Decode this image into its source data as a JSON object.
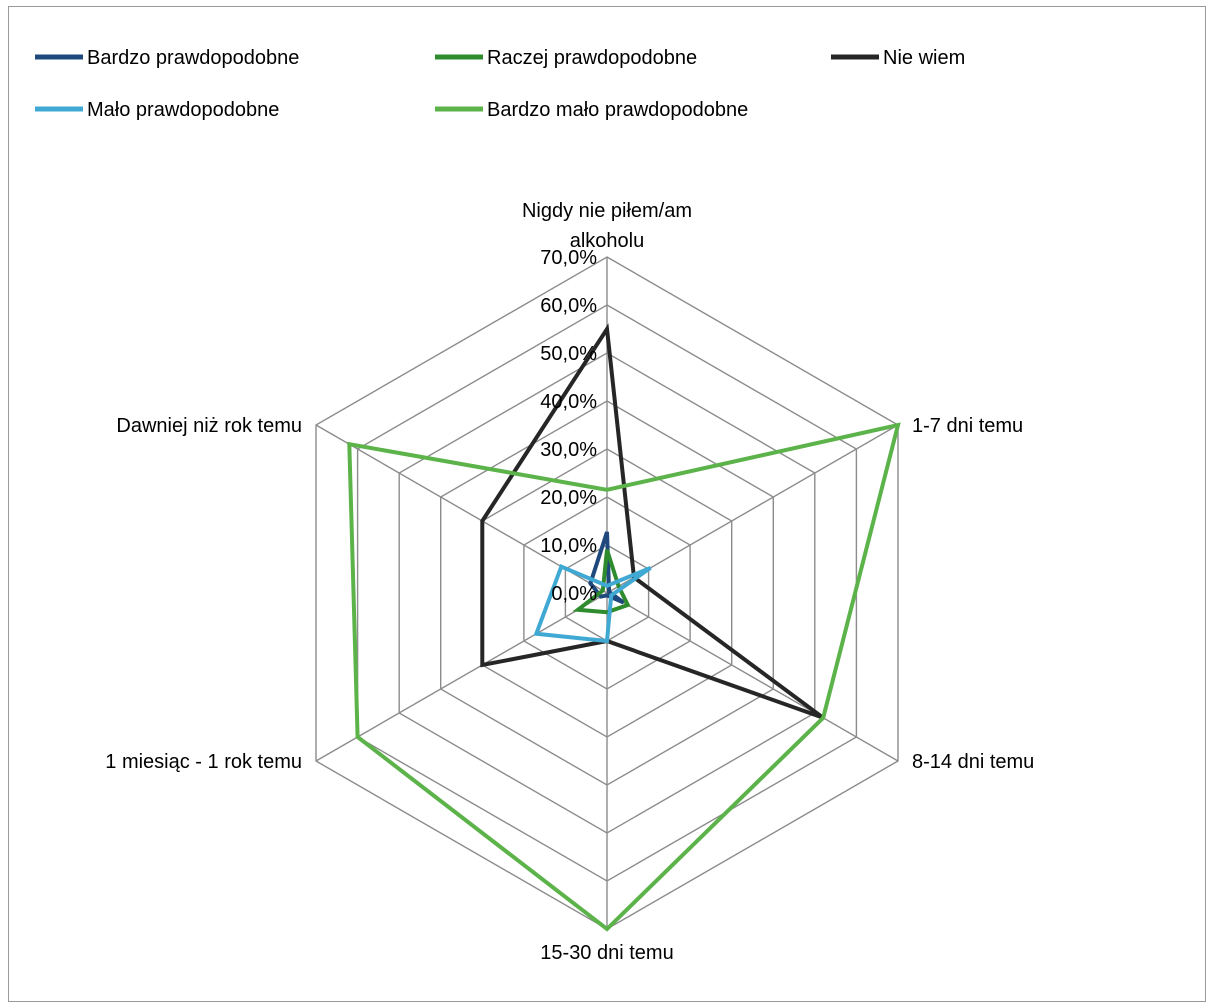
{
  "chart_data": {
    "type": "radar",
    "categories": [
      "Nigdy nie piłem/am alkoholu",
      "1-7 dni temu",
      "8-14 dni temu",
      "15-30 dni temu",
      "1 miesiąc - 1 rok temu",
      "Dawniej niż rok temu"
    ],
    "category_lines": [
      [
        "Nigdy nie piłem/am",
        "alkoholu"
      ],
      [
        "1-7 dni temu"
      ],
      [
        "8-14 dni temu"
      ],
      [
        "15-30 dni temu"
      ],
      [
        "1 miesiąc - 1 rok temu"
      ],
      [
        "Dawniej niż rok temu"
      ]
    ],
    "ticks": [
      "0,0%",
      "10,0%",
      "20,0%",
      "30,0%",
      "40,0%",
      "50,0%",
      "60,0%",
      "70,0%"
    ],
    "rmax": 70,
    "legend_position": "top",
    "series": [
      {
        "name": "Bardzo prawdopodobne",
        "color": "#1f497d",
        "values": [
          12.7,
          0.5,
          4.0,
          0.5,
          1.5,
          4.0
        ]
      },
      {
        "name": "Raczej prawdopodobne",
        "color": "#2e8b2e",
        "values": [
          9.0,
          2.8,
          5.0,
          4.0,
          7.0,
          1.0
        ]
      },
      {
        "name": "Nie wiem",
        "color": "#262626",
        "values": [
          55.0,
          6.5,
          52.0,
          10.0,
          30.0,
          30.0
        ]
      },
      {
        "name": "Mało prawdopodobne",
        "color": "#3fa9d4",
        "values": [
          1.5,
          10.5,
          1.0,
          10.0,
          17.0,
          11.0
        ]
      },
      {
        "name": "Bardzo mało prawdopodobne",
        "color": "#5cb34a",
        "values": [
          21.5,
          70.0,
          52.0,
          70.0,
          60.0,
          62.0
        ]
      }
    ]
  }
}
